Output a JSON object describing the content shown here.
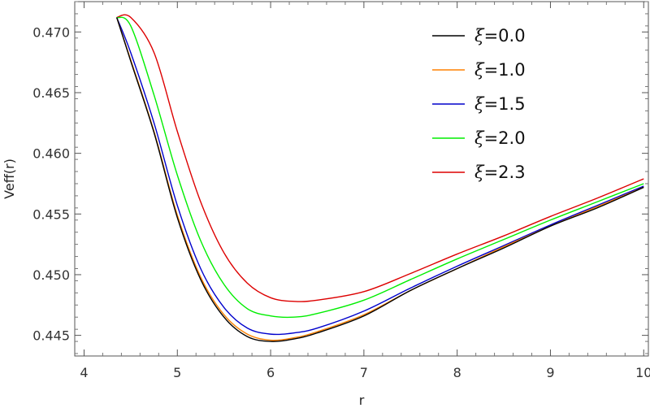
{
  "chart_data": {
    "type": "line",
    "title": "",
    "xlabel": "r",
    "ylabel": "Veff(r)",
    "xlim": [
      3.9,
      10.05
    ],
    "ylim": [
      0.4433,
      0.4725
    ],
    "x_ticks": [
      4,
      5,
      6,
      7,
      8,
      9,
      10
    ],
    "x_tick_labels": [
      "4",
      "5",
      "6",
      "7",
      "8",
      "9",
      "10"
    ],
    "y_ticks": [
      0.445,
      0.45,
      0.455,
      0.46,
      0.465,
      0.47
    ],
    "y_tick_labels": [
      "0.445",
      "0.450",
      "0.455",
      "0.460",
      "0.465",
      "0.470"
    ],
    "grid": false,
    "legend_position": "top-right",
    "x": [
      4.35,
      4.5,
      4.75,
      5.0,
      5.25,
      5.5,
      5.75,
      6.0,
      6.25,
      6.5,
      7.0,
      7.5,
      8.0,
      8.5,
      9.0,
      9.5,
      10.0
    ],
    "series": [
      {
        "name": "ξ=0.0",
        "label_symbol": "ξ",
        "label_value": "=0.0",
        "color": "#000000",
        "values": [
          0.4712,
          0.4676,
          0.4617,
          0.4547,
          0.4496,
          0.4465,
          0.4449,
          0.4445,
          0.4447,
          0.4452,
          0.4466,
          0.4487,
          0.4505,
          0.4522,
          0.454,
          0.4555,
          0.4572
        ]
      },
      {
        "name": "ξ=1.0",
        "label_symbol": "ξ",
        "label_value": "=1.0",
        "color": "#ff8000",
        "values": [
          0.4712,
          0.4677,
          0.4618,
          0.4549,
          0.4498,
          0.4467,
          0.4451,
          0.4446,
          0.4448,
          0.4453,
          0.4467,
          0.4487,
          0.4505,
          0.4523,
          0.454,
          0.4556,
          0.4572
        ]
      },
      {
        "name": "ξ=1.5",
        "label_symbol": "ξ",
        "label_value": "=1.5",
        "color": "#0000cc",
        "values": [
          0.4712,
          0.4683,
          0.4625,
          0.4557,
          0.4505,
          0.4473,
          0.4456,
          0.4451,
          0.4452,
          0.4456,
          0.447,
          0.4489,
          0.4507,
          0.4524,
          0.4541,
          0.4557,
          0.4573
        ]
      },
      {
        "name": "ξ=2.0",
        "label_symbol": "ξ",
        "label_value": "=2.0",
        "color": "#00ee00",
        "values": [
          0.4712,
          0.4705,
          0.4648,
          0.4582,
          0.4528,
          0.4492,
          0.4472,
          0.4466,
          0.4465,
          0.4468,
          0.4479,
          0.4496,
          0.4513,
          0.4529,
          0.4545,
          0.456,
          0.4575
        ]
      },
      {
        "name": "ξ=2.3",
        "label_symbol": "ξ",
        "label_value": "=2.3",
        "color": "#dd0000",
        "values": [
          0.4712,
          0.4712,
          0.4683,
          0.4618,
          0.456,
          0.4518,
          0.4493,
          0.4481,
          0.4478,
          0.4479,
          0.4486,
          0.4501,
          0.4517,
          0.4532,
          0.4548,
          0.4563,
          0.4579
        ]
      }
    ]
  }
}
